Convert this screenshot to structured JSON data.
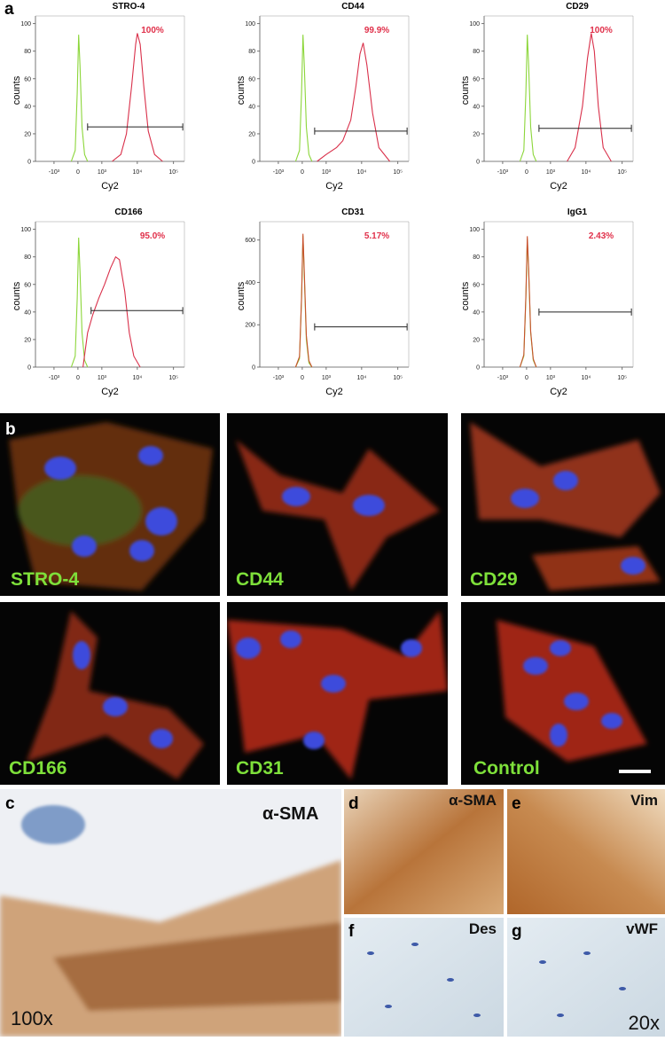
{
  "chart_data": [
    {
      "type": "line",
      "title": "STRO-4",
      "annotation": "100%",
      "xlabel": "Cy2",
      "ylabel": "counts",
      "xscale": "logicle",
      "xlim": [
        -3400,
        200000
      ],
      "xticks": [
        {
          "value": -1000,
          "label": "-10³"
        },
        0,
        {
          "value": 1000,
          "label": "10³"
        },
        {
          "value": 10000,
          "label": "10⁴"
        },
        {
          "value": 100000,
          "label": "10⁵"
        }
      ],
      "ylim": [
        0,
        103
      ],
      "yticks": [
        0,
        20,
        40,
        60,
        80,
        100
      ],
      "series": [
        {
          "color": "#8cd63a",
          "x": [
            -200,
            -80,
            -20,
            20,
            60,
            120,
            200,
            300
          ],
          "values": [
            0,
            8,
            50,
            92,
            70,
            25,
            5,
            0
          ]
        },
        {
          "color": "#d9304a",
          "x": [
            2000,
            3500,
            5000,
            7000,
            9000,
            10000,
            12000,
            15000,
            20000,
            30000,
            50000
          ],
          "values": [
            0,
            5,
            20,
            55,
            85,
            93,
            85,
            55,
            22,
            5,
            0
          ]
        }
      ],
      "gate": {
        "x": [
          300,
          180000
        ],
        "y": 25
      }
    },
    {
      "type": "line",
      "title": "CD44",
      "annotation": "99.9%",
      "xlabel": "Cy2",
      "ylabel": "counts",
      "xscale": "logicle",
      "xlim": [
        -3400,
        200000
      ],
      "xticks": [
        {
          "value": -1000,
          "label": "-10³"
        },
        0,
        {
          "value": 1000,
          "label": "10³"
        },
        {
          "value": 10000,
          "label": "10⁴"
        },
        {
          "value": 100000,
          "label": "10⁵"
        }
      ],
      "ylim": [
        0,
        103
      ],
      "yticks": [
        0,
        20,
        40,
        60,
        80,
        100
      ],
      "series": [
        {
          "color": "#8cd63a",
          "x": [
            -200,
            -80,
            -20,
            20,
            60,
            120,
            200,
            300
          ],
          "values": [
            0,
            8,
            50,
            92,
            70,
            25,
            5,
            0
          ]
        },
        {
          "color": "#d9304a",
          "x": [
            500,
            1000,
            2000,
            3000,
            5000,
            7000,
            9000,
            11000,
            14000,
            20000,
            30000,
            60000
          ],
          "values": [
            0,
            5,
            10,
            15,
            30,
            55,
            78,
            86,
            70,
            35,
            10,
            0
          ]
        }
      ],
      "gate": {
        "x": [
          400,
          180000
        ],
        "y": 22
      }
    },
    {
      "type": "line",
      "title": "CD29",
      "annotation": "100%",
      "xlabel": "Cy2",
      "ylabel": "counts",
      "xscale": "logicle",
      "xlim": [
        -3400,
        200000
      ],
      "xticks": [
        {
          "value": -1000,
          "label": "-10³"
        },
        0,
        {
          "value": 1000,
          "label": "10³"
        },
        {
          "value": 10000,
          "label": "10⁴"
        },
        {
          "value": 100000,
          "label": "10⁵"
        }
      ],
      "ylim": [
        0,
        103
      ],
      "yticks": [
        0,
        20,
        40,
        60,
        80,
        100
      ],
      "series": [
        {
          "color": "#8cd63a",
          "x": [
            -200,
            -80,
            -20,
            20,
            60,
            120,
            200,
            300
          ],
          "values": [
            0,
            8,
            50,
            92,
            70,
            25,
            5,
            0
          ]
        },
        {
          "color": "#d9304a",
          "x": [
            3000,
            5000,
            8000,
            11000,
            14000,
            17000,
            22000,
            30000,
            50000
          ],
          "values": [
            0,
            10,
            40,
            75,
            93,
            80,
            40,
            10,
            0
          ]
        }
      ],
      "gate": {
        "x": [
          400,
          180000
        ],
        "y": 24
      }
    },
    {
      "type": "line",
      "title": "CD166",
      "annotation": "95.0%",
      "xlabel": "Cy2",
      "ylabel": "counts",
      "xscale": "logicle",
      "xlim": [
        -3400,
        200000
      ],
      "xticks": [
        {
          "value": -1000,
          "label": "-10³"
        },
        0,
        {
          "value": 1000,
          "label": "10³"
        },
        {
          "value": 10000,
          "label": "10⁴"
        },
        {
          "value": 100000,
          "label": "10⁵"
        }
      ],
      "ylim": [
        0,
        103
      ],
      "yticks": [
        0,
        20,
        40,
        60,
        80,
        100
      ],
      "series": [
        {
          "color": "#8cd63a",
          "x": [
            -200,
            -80,
            -20,
            20,
            60,
            120,
            200,
            300
          ],
          "values": [
            0,
            8,
            50,
            94,
            70,
            25,
            5,
            0
          ]
        },
        {
          "color": "#d9304a",
          "x": [
            150,
            300,
            500,
            800,
            1200,
            1800,
            2500,
            3200,
            4500,
            6000,
            8000,
            12000
          ],
          "values": [
            0,
            25,
            38,
            50,
            60,
            72,
            80,
            78,
            55,
            25,
            8,
            0
          ]
        }
      ],
      "gate": {
        "x": [
          430,
          180000
        ],
        "y": 41
      }
    },
    {
      "type": "line",
      "title": "CD31",
      "annotation": "5.17%",
      "xlabel": "Cy2",
      "ylabel": "counts",
      "xscale": "logicle",
      "xlim": [
        -3400,
        200000
      ],
      "xticks": [
        {
          "value": -1000,
          "label": "-10³"
        },
        0,
        {
          "value": 1000,
          "label": "10³"
        },
        {
          "value": 10000,
          "label": "10⁴"
        },
        {
          "value": 100000,
          "label": "10⁵"
        }
      ],
      "ylim": [
        0,
        670
      ],
      "yticks": [
        0,
        200,
        400,
        600
      ],
      "series": [
        {
          "color": "#8cd63a",
          "x": [
            -200,
            -80,
            -20,
            20,
            60,
            120,
            200,
            300
          ],
          "values": [
            0,
            40,
            320,
            620,
            430,
            130,
            20,
            0
          ]
        },
        {
          "color": "#c8502e",
          "x": [
            -200,
            -80,
            -20,
            20,
            60,
            120,
            200,
            300
          ],
          "values": [
            0,
            50,
            330,
            630,
            450,
            150,
            30,
            0
          ]
        }
      ],
      "gate": {
        "x": [
          400,
          180000
        ],
        "y": 190
      }
    },
    {
      "type": "line",
      "title": "IgG1",
      "annotation": "2.43%",
      "xlabel": "Cy2",
      "ylabel": "counts",
      "xscale": "logicle",
      "xlim": [
        -3400,
        200000
      ],
      "xticks": [
        {
          "value": -1000,
          "label": "-10³"
        },
        0,
        {
          "value": 1000,
          "label": "10³"
        },
        {
          "value": 10000,
          "label": "10⁴"
        },
        {
          "value": 100000,
          "label": "10⁵"
        }
      ],
      "ylim": [
        0,
        103
      ],
      "yticks": [
        0,
        20,
        40,
        60,
        80,
        100
      ],
      "series": [
        {
          "color": "#8cd63a",
          "x": [
            -200,
            -80,
            -20,
            20,
            60,
            120,
            200,
            300
          ],
          "values": [
            0,
            8,
            50,
            93,
            70,
            25,
            5,
            0
          ]
        },
        {
          "color": "#c8502e",
          "x": [
            -200,
            -80,
            -20,
            20,
            60,
            120,
            200,
            300
          ],
          "values": [
            0,
            9,
            52,
            95,
            72,
            26,
            6,
            0
          ]
        }
      ],
      "gate": {
        "x": [
          400,
          180000
        ],
        "y": 40
      }
    }
  ],
  "panel_letters": [
    "a",
    "b",
    "c",
    "d",
    "e",
    "f",
    "g"
  ],
  "fluorescence_labels": [
    "STRO-4",
    "CD44",
    "CD29",
    "CD166",
    "CD31",
    "Control"
  ],
  "ihc_labels": {
    "c": "α-SMA",
    "c_mag": "100x",
    "d": "α-SMA",
    "e": "Vim",
    "f": "Des",
    "g": "vWF",
    "mag": "20x"
  }
}
